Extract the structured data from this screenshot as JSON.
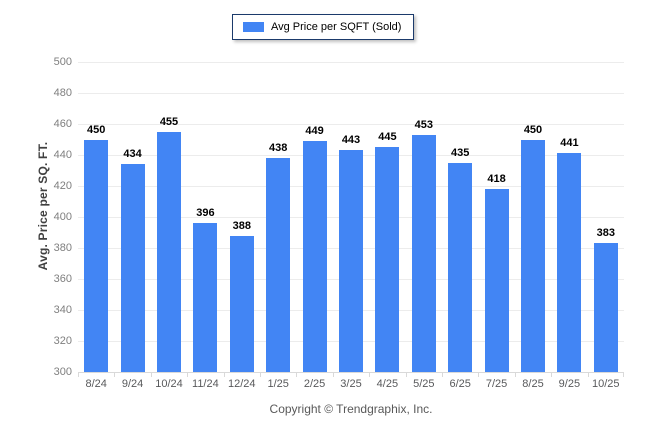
{
  "page": {
    "copyright": "Copyright © Trendgraphix, Inc."
  },
  "legend": {
    "label": "Avg Price per SQFT (Sold)"
  },
  "colors": {
    "bar": "#4285f4",
    "legend_border": "#1b3a6b",
    "grid": "#ececec",
    "axis": "#d9d9d9",
    "ytick_text": "#7f7f7f",
    "xtick_text": "#58595b",
    "ylabel_text": "#404040",
    "copyright_text": "#595959"
  },
  "chart_data": {
    "type": "bar",
    "title": "Avg Price per SQFT (Sold)",
    "categories": [
      "8/24",
      "9/24",
      "10/24",
      "11/24",
      "12/24",
      "1/25",
      "2/25",
      "3/25",
      "4/25",
      "5/25",
      "6/25",
      "7/25",
      "8/25",
      "9/25",
      "10/25"
    ],
    "values": [
      450,
      434,
      455,
      396,
      388,
      438,
      449,
      443,
      445,
      453,
      435,
      418,
      450,
      441,
      383
    ],
    "xlabel": "",
    "ylabel": "Avg. Price per SQ. FT.",
    "ylim": [
      300,
      500
    ],
    "ytick_step": 20,
    "grid": true,
    "value_labels": true,
    "legend_position": "top-center"
  }
}
